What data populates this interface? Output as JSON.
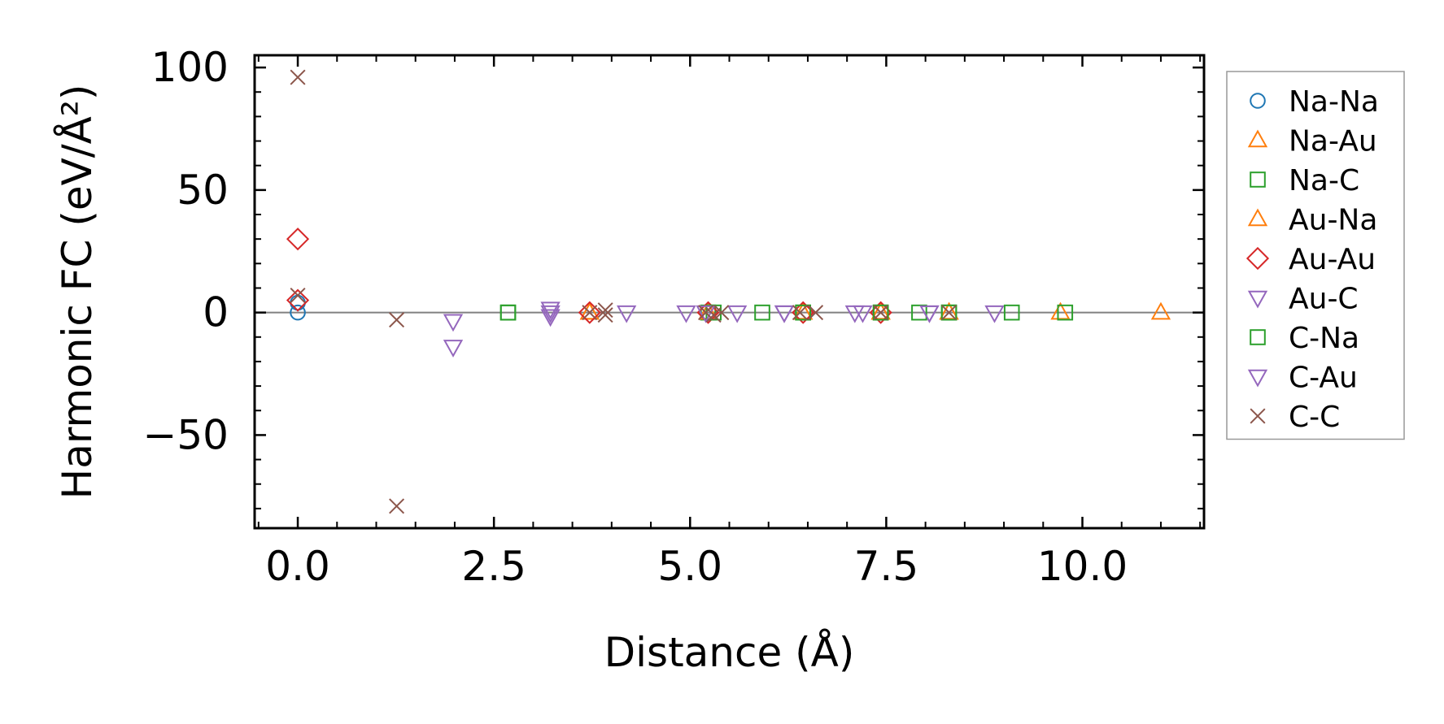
{
  "chart_data": {
    "type": "scatter",
    "title": "",
    "xlabel": "Distance (Å)",
    "ylabel": "Harmonic FC (eV/Å²)",
    "xlim": [
      -0.55,
      11.55
    ],
    "ylim": [
      -88,
      105
    ],
    "x_ticks": [
      {
        "value": 0.0,
        "label": "0.0"
      },
      {
        "value": 2.5,
        "label": "2.5"
      },
      {
        "value": 5.0,
        "label": "5.0"
      },
      {
        "value": 7.5,
        "label": "7.5"
      },
      {
        "value": 10.0,
        "label": "10.0"
      }
    ],
    "y_ticks": [
      {
        "value": 100,
        "label": "100"
      },
      {
        "value": 50,
        "label": "50"
      },
      {
        "value": 0,
        "label": "0"
      },
      {
        "value": -50,
        "label": "−50"
      }
    ],
    "zero_line": true,
    "grid": false,
    "legend_position": "right-outside",
    "series": [
      {
        "name": "Na-Na",
        "marker": "circle",
        "color": "#1f77b4",
        "x": [
          0.0,
          0.0
        ],
        "y": [
          0.0,
          4.0
        ]
      },
      {
        "name": "Na-Au",
        "marker": "triangle-up",
        "color": "#ff7f0e",
        "x": [
          3.72,
          5.23,
          6.44,
          7.43,
          8.3,
          9.72,
          11.0
        ],
        "y": [
          0,
          0,
          0,
          0,
          0,
          0,
          0
        ]
      },
      {
        "name": "Na-C",
        "marker": "square",
        "color": "#2ca02c",
        "x": [
          2.68,
          5.23,
          6.44,
          7.43,
          8.3
        ],
        "y": [
          0,
          0,
          0,
          0,
          0
        ]
      },
      {
        "name": "Au-Na",
        "marker": "triangle-up",
        "color": "#ff7f0e",
        "x": [
          3.72,
          5.23,
          6.44,
          7.43,
          8.3
        ],
        "y": [
          0,
          0,
          0,
          0,
          0
        ]
      },
      {
        "name": "Au-Au",
        "marker": "diamond",
        "color": "#d62728",
        "x": [
          0.0,
          0.0,
          3.72,
          5.23,
          6.44,
          7.43
        ],
        "y": [
          30,
          5,
          0,
          0,
          0,
          0
        ]
      },
      {
        "name": "Au-C",
        "marker": "triangle-down",
        "color": "#9467bd",
        "x": [
          1.98,
          1.98,
          3.22,
          3.22,
          4.19,
          4.95,
          5.6,
          6.2,
          7.1,
          8.05,
          8.88
        ],
        "y": [
          -3.5,
          -14,
          1.5,
          -1.5,
          0,
          0,
          0,
          0,
          0,
          0,
          0
        ]
      },
      {
        "name": "C-Na",
        "marker": "square",
        "color": "#2ca02c",
        "x": [
          2.68,
          5.3,
          5.92,
          6.44,
          7.43,
          7.92,
          8.3,
          9.1,
          9.78
        ],
        "y": [
          0,
          0,
          0,
          0,
          0,
          0,
          0,
          0,
          0
        ]
      },
      {
        "name": "C-Au",
        "marker": "triangle-down",
        "color": "#9467bd",
        "x": [
          3.22,
          5.2,
          6.2,
          7.2,
          8.05
        ],
        "y": [
          0,
          0,
          0,
          0,
          0
        ]
      },
      {
        "name": "C-C",
        "marker": "x",
        "color": "#8c564b",
        "x": [
          0.0,
          0.0,
          1.26,
          1.26,
          3.72,
          3.92,
          3.92,
          5.2,
          5.3,
          5.4,
          6.4,
          6.6,
          7.43,
          8.3
        ],
        "y": [
          96,
          7,
          -3,
          -79,
          0,
          1,
          -1,
          0,
          -1,
          0,
          0,
          0,
          0,
          0
        ]
      }
    ]
  }
}
